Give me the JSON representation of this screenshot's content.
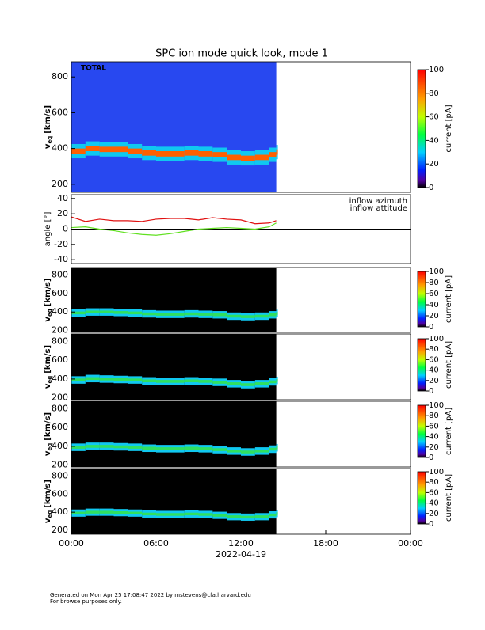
{
  "chart_data": [
    {
      "type": "spectrogram",
      "title": "SPC ion mode quick look, mode 1",
      "annotation": "TOTAL",
      "ylabel": [
        "v",
        "eq",
        "[km/s]"
      ],
      "ylim": [
        155,
        885
      ],
      "yticks": [
        200,
        400,
        600,
        800
      ],
      "xlim": [
        0,
        24
      ],
      "x": [
        0,
        1,
        2,
        3,
        4,
        5,
        6,
        7,
        8,
        9,
        10,
        11,
        12,
        13,
        14,
        14.5
      ],
      "values": [
        385,
        400,
        395,
        395,
        385,
        375,
        370,
        370,
        375,
        370,
        365,
        350,
        345,
        350,
        365,
        380
      ],
      "color": "#ff6000",
      "background": "#2848f0",
      "colorbar": {
        "label": "current [pA]",
        "ticks": [
          0,
          20,
          40,
          60,
          80,
          100
        ]
      }
    },
    {
      "type": "line",
      "ylabel": "angle [°]",
      "ylim": [
        -45,
        45
      ],
      "yticks": [
        -40,
        -20,
        0,
        20,
        40
      ],
      "xlim": [
        0,
        24
      ],
      "x": [
        0,
        1,
        2,
        3,
        4,
        5,
        6,
        7,
        8,
        9,
        10,
        11,
        12,
        13,
        14,
        14.5
      ],
      "legend": "top-right",
      "series": [
        {
          "name": "inflow azimuth",
          "color": "#e01010",
          "values": [
            16,
            10,
            13,
            11,
            11,
            10,
            13,
            14,
            14,
            12,
            15,
            13,
            12,
            7,
            8,
            11
          ]
        },
        {
          "name": "inflow attitude",
          "color": "#60e020",
          "values": [
            2,
            3,
            0,
            -2,
            -5,
            -7,
            -8,
            -6,
            -3,
            0,
            1,
            2,
            1,
            0,
            3,
            8
          ]
        }
      ]
    },
    {
      "type": "spectrogram",
      "ylabel": [
        "v",
        "eq",
        "[km/s]"
      ],
      "ylim": [
        180,
        880
      ],
      "yticks": [
        200,
        400,
        600,
        800
      ],
      "xlim": [
        0,
        24
      ],
      "x": [
        0,
        1,
        2,
        3,
        4,
        5,
        6,
        7,
        8,
        9,
        10,
        11,
        12,
        13,
        14,
        14.5
      ],
      "values": [
        390,
        400,
        400,
        395,
        390,
        380,
        375,
        375,
        380,
        375,
        370,
        355,
        350,
        355,
        370,
        385
      ],
      "color": "#30e060",
      "background": "#000000",
      "colorbar": {
        "label": "current [pA]",
        "ticks": [
          0,
          20,
          40,
          60,
          80,
          100
        ]
      }
    },
    {
      "type": "spectrogram",
      "ylabel": [
        "v",
        "eq",
        "[km/s]"
      ],
      "ylim": [
        180,
        880
      ],
      "yticks": [
        200,
        400,
        600,
        800
      ],
      "xlim": [
        0,
        24
      ],
      "x": [
        0,
        1,
        2,
        3,
        4,
        5,
        6,
        7,
        8,
        9,
        10,
        11,
        12,
        13,
        14,
        14.5
      ],
      "values": [
        390,
        405,
        400,
        395,
        390,
        380,
        375,
        375,
        380,
        375,
        365,
        350,
        340,
        350,
        370,
        385
      ],
      "color": "#30e060",
      "background": "#000000",
      "colorbar": {
        "label": "current [pA]",
        "ticks": [
          0,
          20,
          40,
          60,
          80,
          100
        ]
      }
    },
    {
      "type": "spectrogram",
      "ylabel": [
        "v",
        "eq",
        "[km/s]"
      ],
      "ylim": [
        180,
        880
      ],
      "yticks": [
        200,
        400,
        600,
        800
      ],
      "xlim": [
        0,
        24
      ],
      "x": [
        0,
        1,
        2,
        3,
        4,
        5,
        6,
        7,
        8,
        9,
        10,
        11,
        12,
        13,
        14,
        14.5
      ],
      "values": [
        390,
        400,
        400,
        395,
        390,
        380,
        375,
        375,
        380,
        375,
        365,
        350,
        340,
        350,
        370,
        385
      ],
      "color": "#30e060",
      "background": "#000000",
      "colorbar": {
        "label": "current [pA]",
        "ticks": [
          0,
          20,
          40,
          60,
          80,
          100
        ]
      }
    },
    {
      "type": "spectrogram",
      "ylabel": [
        "v",
        "eq",
        "[km/s]"
      ],
      "ylim": [
        155,
        885
      ],
      "yticks": [
        200,
        400,
        600,
        800
      ],
      "xlim": [
        0,
        24
      ],
      "x": [
        0,
        1,
        2,
        3,
        4,
        5,
        6,
        7,
        8,
        9,
        10,
        11,
        12,
        13,
        14,
        14.5
      ],
      "values": [
        390,
        400,
        400,
        395,
        390,
        380,
        375,
        375,
        380,
        375,
        365,
        350,
        345,
        350,
        370,
        385
      ],
      "color": "#30e060",
      "background": "#000000",
      "colorbar": {
        "label": "current [pA]",
        "ticks": [
          0,
          20,
          40,
          60,
          80,
          100
        ]
      },
      "xticks": [
        {
          "value": 0,
          "label": "00:00"
        },
        {
          "value": 6,
          "label": "06:00"
        },
        {
          "value": 12,
          "label": "12:00"
        },
        {
          "value": 18,
          "label": "18:00"
        },
        {
          "value": 24,
          "label": "00:00"
        }
      ],
      "xlabel": "2022-04-19"
    }
  ],
  "footer": [
    "Generated on Mon Apr 25 17:08:47 2022 by mstevens@cfa.harvard.edu",
    "For browse purposes only."
  ]
}
